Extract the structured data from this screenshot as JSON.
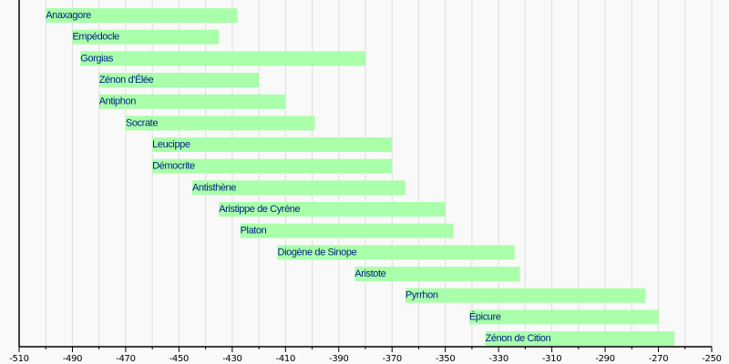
{
  "chart_data": {
    "type": "bar",
    "orientation": "horizontal-timeline",
    "title": "",
    "xlabel": "",
    "ylabel": "",
    "xlim": [
      -510,
      -250
    ],
    "xticks": [
      -510,
      -490,
      -470,
      -450,
      -430,
      -410,
      -390,
      -370,
      -350,
      -330,
      -310,
      -290,
      -270,
      -250
    ],
    "minor_grid_step": 10,
    "grid": true,
    "bar_color": "#aaffaa",
    "label_color": "#002288",
    "series": [
      {
        "name": "Anaxagore",
        "start": -500,
        "end": -428
      },
      {
        "name": "Empédocle",
        "start": -490,
        "end": -435
      },
      {
        "name": "Gorgias",
        "start": -487,
        "end": -380
      },
      {
        "name": "Zénon d'Élée",
        "start": -480,
        "end": -420
      },
      {
        "name": "Antiphon",
        "start": -480,
        "end": -410
      },
      {
        "name": "Socrate",
        "start": -470,
        "end": -399
      },
      {
        "name": "Leucippe",
        "start": -460,
        "end": -370
      },
      {
        "name": "Démocrite",
        "start": -460,
        "end": -370
      },
      {
        "name": "Antisthène",
        "start": -445,
        "end": -365
      },
      {
        "name": "Aristippe de Cyrène",
        "start": -435,
        "end": -350
      },
      {
        "name": "Platon",
        "start": -427,
        "end": -347
      },
      {
        "name": "Diogène de Sinope",
        "start": -413,
        "end": -324
      },
      {
        "name": "Aristote",
        "start": -384,
        "end": -322
      },
      {
        "name": "Pyrrhon",
        "start": -365,
        "end": -275
      },
      {
        "name": "Épicure",
        "start": -341,
        "end": -270
      },
      {
        "name": "Zénon de Cition",
        "start": -335,
        "end": -264
      }
    ]
  }
}
